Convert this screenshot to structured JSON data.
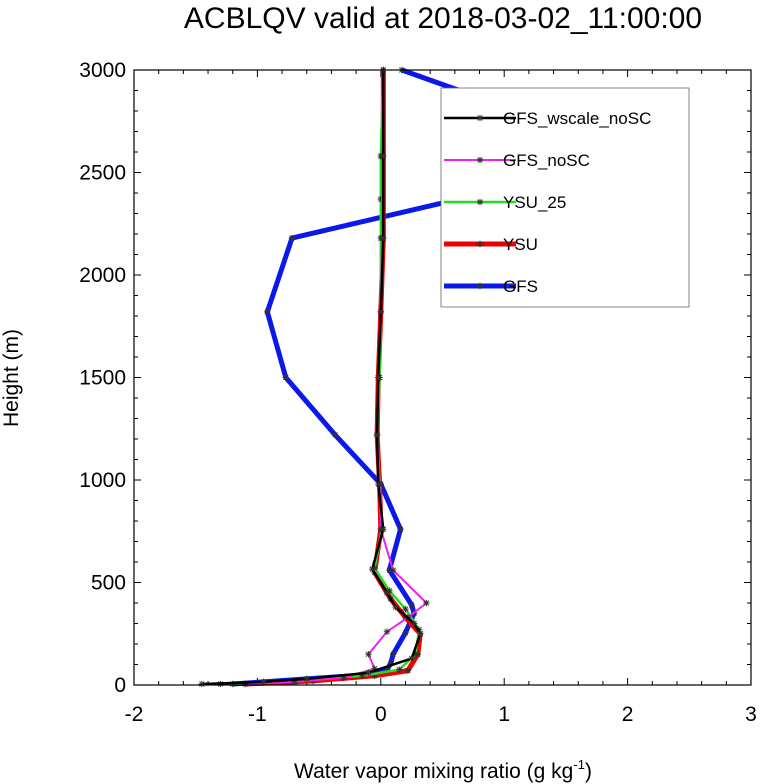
{
  "chart_data": {
    "type": "line",
    "title": "ACBLQV valid at 2018-03-02_11:00:00",
    "xlabel": "Water vapor mixing ratio (g kg",
    "xlabel_sup": "-1",
    "xlabel_end": ")",
    "ylabel": "Height (m)",
    "xlim": [
      -2,
      3
    ],
    "ylim": [
      0,
      3000
    ],
    "xticks": [
      -2,
      -1,
      0,
      1,
      2,
      3
    ],
    "yticks": [
      0,
      500,
      1000,
      1500,
      2000,
      2500,
      3000
    ],
    "xtick_labels": [
      "-2",
      "-1",
      "0",
      "1",
      "2",
      "3"
    ],
    "ytick_labels": [
      "0",
      "500",
      "1000",
      "1500",
      "2000",
      "2500",
      "3000"
    ],
    "legend_position": "top-right",
    "series": [
      {
        "name": "GFS",
        "color": "#0a18ea",
        "width": 5,
        "points": [
          [
            -1.2,
            5
          ],
          [
            -0.95,
            15
          ],
          [
            -0.6,
            30
          ],
          [
            -0.1,
            50
          ],
          [
            0.05,
            75
          ],
          [
            0.08,
            105
          ],
          [
            0.1,
            150
          ],
          [
            0.2,
            255
          ],
          [
            0.27,
            350
          ],
          [
            0.25,
            390
          ],
          [
            0.07,
            560
          ],
          [
            0.16,
            760
          ],
          [
            0.0,
            980
          ],
          [
            -0.37,
            1220
          ],
          [
            -0.77,
            1500
          ],
          [
            -0.92,
            1820
          ],
          [
            -0.72,
            2180
          ],
          [
            2.13,
            2580
          ],
          [
            0.17,
            3000
          ]
        ]
      },
      {
        "name": "YSU",
        "color": "#ee0000",
        "width": 5,
        "points": [
          [
            -1.1,
            5
          ],
          [
            -0.55,
            20
          ],
          [
            -0.05,
            45
          ],
          [
            0.22,
            70
          ],
          [
            0.3,
            150
          ],
          [
            0.32,
            250
          ],
          [
            0.2,
            330
          ],
          [
            0.08,
            420
          ],
          [
            -0.05,
            550
          ],
          [
            0.0,
            760
          ],
          [
            -0.01,
            980
          ],
          [
            -0.03,
            1220
          ],
          [
            -0.02,
            1500
          ],
          [
            0.0,
            1820
          ],
          [
            0.02,
            2180
          ],
          [
            0.02,
            2580
          ],
          [
            0.02,
            3000
          ]
        ]
      },
      {
        "name": "YSU_25",
        "color": "#22dd22",
        "width": 2.5,
        "points": [
          [
            -1.3,
            5
          ],
          [
            -0.7,
            20
          ],
          [
            -0.15,
            45
          ],
          [
            0.15,
            75
          ],
          [
            0.28,
            150
          ],
          [
            0.31,
            270
          ],
          [
            0.2,
            370
          ],
          [
            0.07,
            460
          ],
          [
            -0.05,
            570
          ],
          [
            0.01,
            760
          ],
          [
            -0.01,
            980
          ],
          [
            -0.03,
            1220
          ],
          [
            -0.01,
            1500
          ],
          [
            0.0,
            1820
          ],
          [
            0.0,
            2180
          ],
          [
            0.0,
            2370
          ],
          [
            0.0,
            2580
          ],
          [
            0.02,
            3000
          ]
        ]
      },
      {
        "name": "GFS_noSC",
        "color": "#ee22ee",
        "width": 2,
        "points": [
          [
            -1.1,
            5
          ],
          [
            -0.7,
            15
          ],
          [
            -0.3,
            35
          ],
          [
            -0.05,
            80
          ],
          [
            -0.1,
            150
          ],
          [
            0.05,
            260
          ],
          [
            0.22,
            330
          ],
          [
            0.37,
            400
          ],
          [
            0.1,
            560
          ],
          [
            0.0,
            760
          ],
          [
            -0.01,
            980
          ],
          [
            -0.03,
            1220
          ],
          [
            -0.02,
            1500
          ],
          [
            0.0,
            1820
          ],
          [
            0.01,
            2180
          ],
          [
            0.01,
            2580
          ],
          [
            0.02,
            3000
          ]
        ]
      },
      {
        "name": "GFS_wscale_noSC",
        "color": "#000000",
        "width": 2.5,
        "points": [
          [
            -1.45,
            5
          ],
          [
            -0.95,
            15
          ],
          [
            -0.6,
            30
          ],
          [
            -0.1,
            60
          ],
          [
            0.25,
            130
          ],
          [
            0.32,
            250
          ],
          [
            0.27,
            300
          ],
          [
            0.12,
            380
          ],
          [
            0.05,
            450
          ],
          [
            -0.07,
            565
          ],
          [
            0.02,
            760
          ],
          [
            -0.02,
            980
          ],
          [
            -0.03,
            1220
          ],
          [
            -0.02,
            1500
          ],
          [
            0.0,
            1820
          ],
          [
            0.02,
            2180
          ],
          [
            0.02,
            2580
          ],
          [
            0.02,
            3000
          ]
        ]
      }
    ],
    "legend_order": [
      "GFS_wscale_noSC",
      "GFS_noSC",
      "YSU_25",
      "YSU",
      "GFS"
    ]
  }
}
